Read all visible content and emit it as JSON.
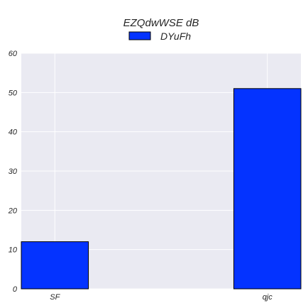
{
  "chart_data": {
    "type": "bar",
    "title": "EZQdwWSE dB",
    "xlabel": "",
    "ylabel": "",
    "categories": [
      "SF",
      "qjc"
    ],
    "series": [
      {
        "name": "DYuFh",
        "values": [
          12,
          51
        ]
      }
    ],
    "ylim": [
      0,
      60
    ],
    "yticks": [
      0,
      10,
      20,
      30,
      40,
      50,
      60
    ],
    "grid": true,
    "legend_position": "top-center",
    "colors": {
      "bar_fill": "#0433ff",
      "bar_edge": "#000000",
      "plot_background": "#eaeaf2",
      "grid": "#ffffff",
      "text": "#262626"
    }
  }
}
